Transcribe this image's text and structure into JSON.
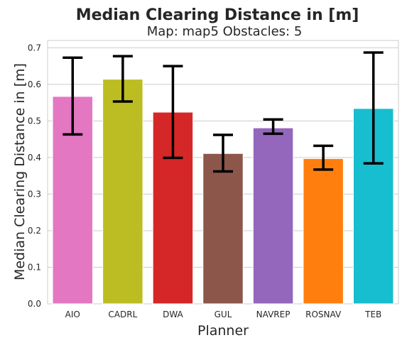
{
  "chart_data": {
    "type": "bar",
    "title": "Median Clearing Distance in [m]",
    "subtitle": "Map: map5 Obstacles: 5",
    "xlabel": "Planner",
    "ylabel": "Median Clearing Distance in [m]",
    "ylim": [
      0,
      0.72
    ],
    "yticks": [
      "0.0",
      "0.1",
      "0.2",
      "0.3",
      "0.4",
      "0.5",
      "0.6",
      "0.7"
    ],
    "grid": true,
    "categories": [
      "AIO",
      "CADRL",
      "DWA",
      "GUL",
      "NAVREP",
      "ROSNAV",
      "TEB"
    ],
    "values": [
      0.567,
      0.614,
      0.524,
      0.411,
      0.481,
      0.397,
      0.534
    ],
    "error_low": [
      0.463,
      0.553,
      0.399,
      0.362,
      0.465,
      0.367,
      0.384
    ],
    "error_high": [
      0.673,
      0.677,
      0.65,
      0.462,
      0.504,
      0.432,
      0.687
    ],
    "colors": [
      "#e377c2",
      "#bcbd22",
      "#d62728",
      "#8c564b",
      "#9467bd",
      "#ff7f0e",
      "#17becf"
    ]
  }
}
